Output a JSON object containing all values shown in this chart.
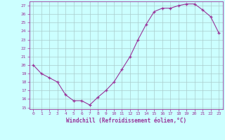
{
  "x": [
    0,
    1,
    2,
    3,
    4,
    5,
    6,
    7,
    8,
    9,
    10,
    11,
    12,
    13,
    14,
    15,
    16,
    17,
    18,
    19,
    20,
    21,
    22,
    23
  ],
  "y": [
    20,
    19,
    18.5,
    18,
    16.5,
    15.8,
    15.8,
    15.3,
    16.2,
    17,
    18,
    19.5,
    21,
    23,
    24.8,
    26.3,
    26.7,
    26.7,
    27,
    27.2,
    27.2,
    26.5,
    25.7,
    23.8
  ],
  "line_color": "#993399",
  "marker_color": "#993399",
  "bg_color": "#ccffff",
  "grid_color": "#aacccc",
  "xlabel": "Windchill (Refroidissement éolien,°C)",
  "xlabel_color": "#993399",
  "ylim": [
    14.8,
    27.5
  ],
  "yticks": [
    15,
    16,
    17,
    18,
    19,
    20,
    21,
    22,
    23,
    24,
    25,
    26,
    27
  ],
  "xticks": [
    0,
    1,
    2,
    3,
    4,
    5,
    6,
    7,
    8,
    9,
    10,
    11,
    12,
    13,
    14,
    15,
    16,
    17,
    18,
    19,
    20,
    21,
    22,
    23
  ],
  "tick_color": "#993399",
  "axis_color": "#993399",
  "figsize": [
    3.2,
    2.0
  ],
  "dpi": 100
}
